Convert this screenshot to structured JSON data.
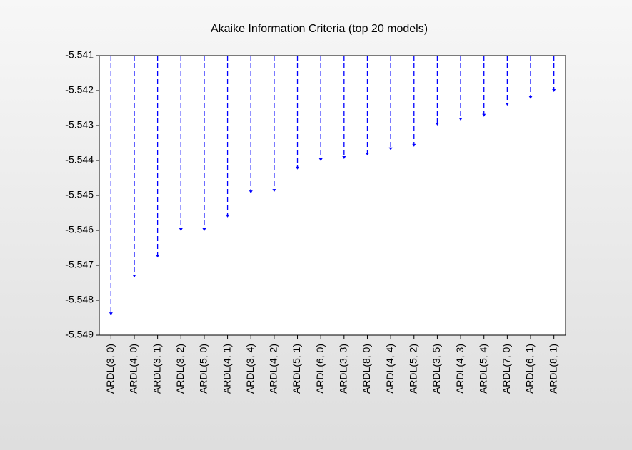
{
  "chart_data": {
    "type": "dropline",
    "title": "Akaike Information Criteria (top 20 models)",
    "categories": [
      "ARDL(3, 0)",
      "ARDL(4, 0)",
      "ARDL(3, 1)",
      "ARDL(3, 2)",
      "ARDL(5, 0)",
      "ARDL(4, 1)",
      "ARDL(3, 4)",
      "ARDL(4, 2)",
      "ARDL(5, 1)",
      "ARDL(6, 0)",
      "ARDL(3, 3)",
      "ARDL(8, 0)",
      "ARDL(4, 4)",
      "ARDL(5, 2)",
      "ARDL(3, 5)",
      "ARDL(4, 3)",
      "ARDL(5, 4)",
      "ARDL(7, 0)",
      "ARDL(6, 1)",
      "ARDL(8, 1)"
    ],
    "values": [
      -5.54841,
      -5.54733,
      -5.54676,
      -5.546,
      -5.546,
      -5.54561,
      -5.54492,
      -5.54488,
      -5.54424,
      -5.544,
      -5.54394,
      -5.54384,
      -5.54369,
      -5.54359,
      -5.54298,
      -5.54284,
      -5.54273,
      -5.54241,
      -5.54222,
      -5.54202
    ],
    "color": "#0000ff",
    "line_style": "dashed",
    "ylim": [
      -5.549,
      -5.541
    ],
    "yticks": [
      -5.549,
      -5.548,
      -5.547,
      -5.546,
      -5.545,
      -5.544,
      -5.543,
      -5.542,
      -5.541
    ],
    "grid": false
  }
}
